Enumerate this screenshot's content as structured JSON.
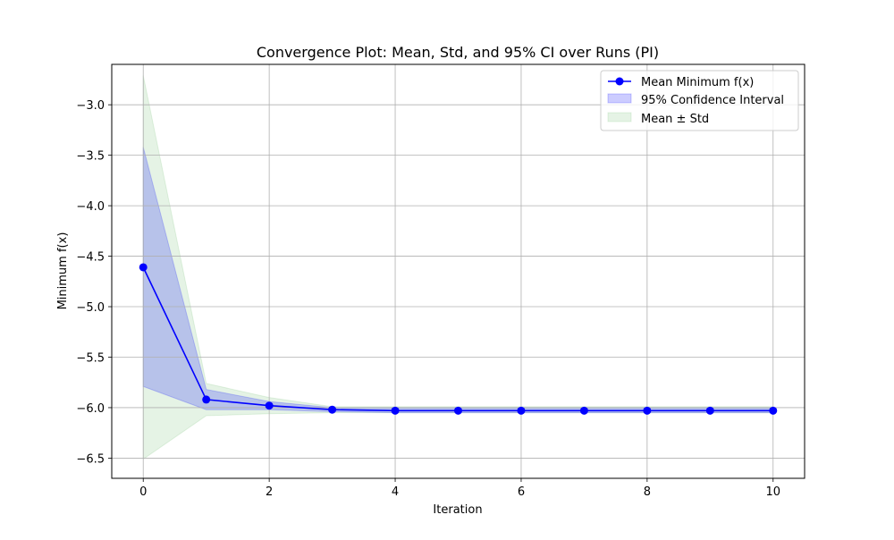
{
  "chart_data": {
    "type": "line",
    "title": "Convergence Plot: Mean, Std, and 95% CI over Runs (PI)",
    "xlabel": "Iteration",
    "ylabel": "Minimum f(x)",
    "xlim": [
      -0.5,
      10.5
    ],
    "ylim": [
      -6.7,
      -2.6
    ],
    "xticks": [
      0,
      2,
      4,
      6,
      8,
      10
    ],
    "yticks": [
      -3.0,
      -3.5,
      -4.0,
      -4.5,
      -5.0,
      -5.5,
      -6.0,
      -6.5
    ],
    "xtick_labels": [
      "0",
      "2",
      "4",
      "6",
      "8",
      "10"
    ],
    "ytick_labels": [
      "−3.0",
      "−3.5",
      "−4.0",
      "−4.5",
      "−5.0",
      "−5.5",
      "−6.0",
      "−6.5"
    ],
    "grid": true,
    "legend_position": "top-right",
    "x": [
      0,
      1,
      2,
      3,
      4,
      5,
      6,
      7,
      8,
      9,
      10
    ],
    "series": [
      {
        "name": "Mean Minimum f(x)",
        "kind": "line-marker",
        "color": "#0000ff",
        "values": [
          -4.61,
          -5.92,
          -5.98,
          -6.02,
          -6.03,
          -6.03,
          -6.03,
          -6.03,
          -6.03,
          -6.03,
          -6.03
        ]
      },
      {
        "name": "95% Confidence Interval",
        "kind": "band",
        "color": "#0000ff",
        "opacity": 0.2,
        "lower": [
          -5.79,
          -6.02,
          -6.02,
          -6.04,
          -6.05,
          -6.05,
          -6.05,
          -6.05,
          -6.05,
          -6.05,
          -6.05
        ],
        "upper": [
          -3.42,
          -5.82,
          -5.94,
          -6.0,
          -6.0,
          -6.0,
          -6.0,
          -6.0,
          -6.0,
          -6.0,
          -6.0
        ]
      },
      {
        "name": "Mean ± Std",
        "kind": "band",
        "color": "#2ca02c",
        "opacity": 0.12,
        "lower": [
          -6.51,
          -6.08,
          -6.06,
          -6.05,
          -6.05,
          -6.05,
          -6.05,
          -6.05,
          -6.05,
          -6.05,
          -6.05
        ],
        "upper": [
          -2.71,
          -5.76,
          -5.9,
          -5.99,
          -5.99,
          -5.99,
          -5.99,
          -5.99,
          -5.99,
          -5.99,
          -5.99
        ]
      }
    ]
  }
}
